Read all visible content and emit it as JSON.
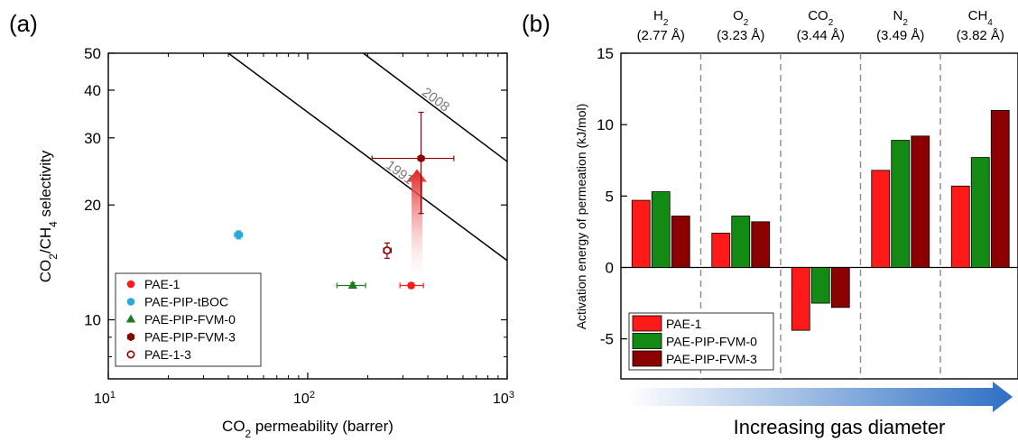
{
  "chart_data": [
    {
      "panel": "(a)",
      "type": "scatter",
      "xlabel": "CO2 permeability (barrer)",
      "ylabel": "CO2/CH4 selectivity",
      "xscale": "log",
      "yscale": "log",
      "xlim": [
        10,
        1000
      ],
      "ylim": [
        7,
        50
      ],
      "x_ticks": [
        {
          "value": 10,
          "label": "10",
          "exp": "1"
        },
        {
          "value": 100,
          "label": "10",
          "exp": "2"
        },
        {
          "value": 1000,
          "label": "10",
          "exp": "3"
        }
      ],
      "y_ticks": [
        10,
        20,
        30,
        40,
        50
      ],
      "series": [
        {
          "name": "PAE-1",
          "marker": "circle",
          "filled": true,
          "color": "#ff1a1a",
          "points": [
            {
              "x": 330,
              "y": 12.3,
              "xerr": [
                290,
                380
              ],
              "yerr": [
                12.1,
                12.5
              ]
            }
          ]
        },
        {
          "name": "PAE-PIP-tBOC",
          "marker": "circle",
          "filled": true,
          "color": "#29a8e0",
          "points": [
            {
              "x": 45,
              "y": 16.7,
              "xerr": [
                43,
                47
              ],
              "yerr": [
                16.3,
                17.1
              ]
            }
          ]
        },
        {
          "name": "PAE-PIP-FVM-0",
          "marker": "triangle",
          "filled": true,
          "color": "#1e7a1e",
          "points": [
            {
              "x": 168,
              "y": 12.3,
              "xerr": [
                140,
                195
              ],
              "yerr": [
                12.1,
                12.5
              ]
            }
          ]
        },
        {
          "name": "PAE-PIP-FVM-3",
          "marker": "hexagon",
          "filled": true,
          "color": "#8b0000",
          "points": [
            {
              "x": 370,
              "y": 26.5,
              "xerr": [
                210,
                540
              ],
              "yerr": [
                19,
                35
              ]
            }
          ]
        },
        {
          "name": "PAE-1-3",
          "marker": "circle",
          "filled": false,
          "color": "#8b0000",
          "points": [
            {
              "x": 250,
              "y": 15.2,
              "xerr": [
                240,
                262
              ],
              "yerr": [
                14.5,
                15.9
              ]
            }
          ]
        }
      ],
      "upper_bounds": [
        {
          "label": "1991",
          "points": [
            [
              40,
              50
            ],
            [
              1000,
              14.3
            ]
          ]
        },
        {
          "label": "2008",
          "points": [
            [
              190,
              50
            ],
            [
              1000,
              26
            ]
          ]
        }
      ],
      "annotation": "arrow from PAE-1 to PAE-PIP-FVM-3",
      "legend_position": "bottom-left"
    },
    {
      "panel": "(b)",
      "type": "bar",
      "ylabel": "Activation energy of permeation (kJ/mol)",
      "ylim": [
        -7.8,
        15
      ],
      "y_ticks": [
        -5,
        0,
        5,
        10,
        15
      ],
      "categories": [
        {
          "gas": "H",
          "sub": "2",
          "diameter": "(2.77 Å)"
        },
        {
          "gas": "O",
          "sub": "2",
          "diameter": "(3.23 Å)"
        },
        {
          "gas": "CO",
          "sub": "2",
          "diameter": "(3.44 Å)"
        },
        {
          "gas": "N",
          "sub": "2",
          "diameter": "(3.49 Å)"
        },
        {
          "gas": "CH",
          "sub": "4",
          "diameter": "(3.82 Å)"
        }
      ],
      "series": [
        {
          "name": "PAE-1",
          "color": "#ff1a1a",
          "values": [
            4.7,
            2.4,
            -4.4,
            6.8,
            5.7
          ]
        },
        {
          "name": "PAE-PIP-FVM-0",
          "color": "#138a13",
          "values": [
            5.3,
            3.6,
            -2.5,
            8.9,
            7.7
          ]
        },
        {
          "name": "PAE-PIP-FVM-3",
          "color": "#8b0000",
          "values": [
            3.6,
            3.2,
            -2.8,
            9.2,
            11.0
          ]
        }
      ],
      "bottom_label": "Increasing gas diameter",
      "arrow_color": "#2e6fc4",
      "legend_position": "bottom-left"
    }
  ]
}
